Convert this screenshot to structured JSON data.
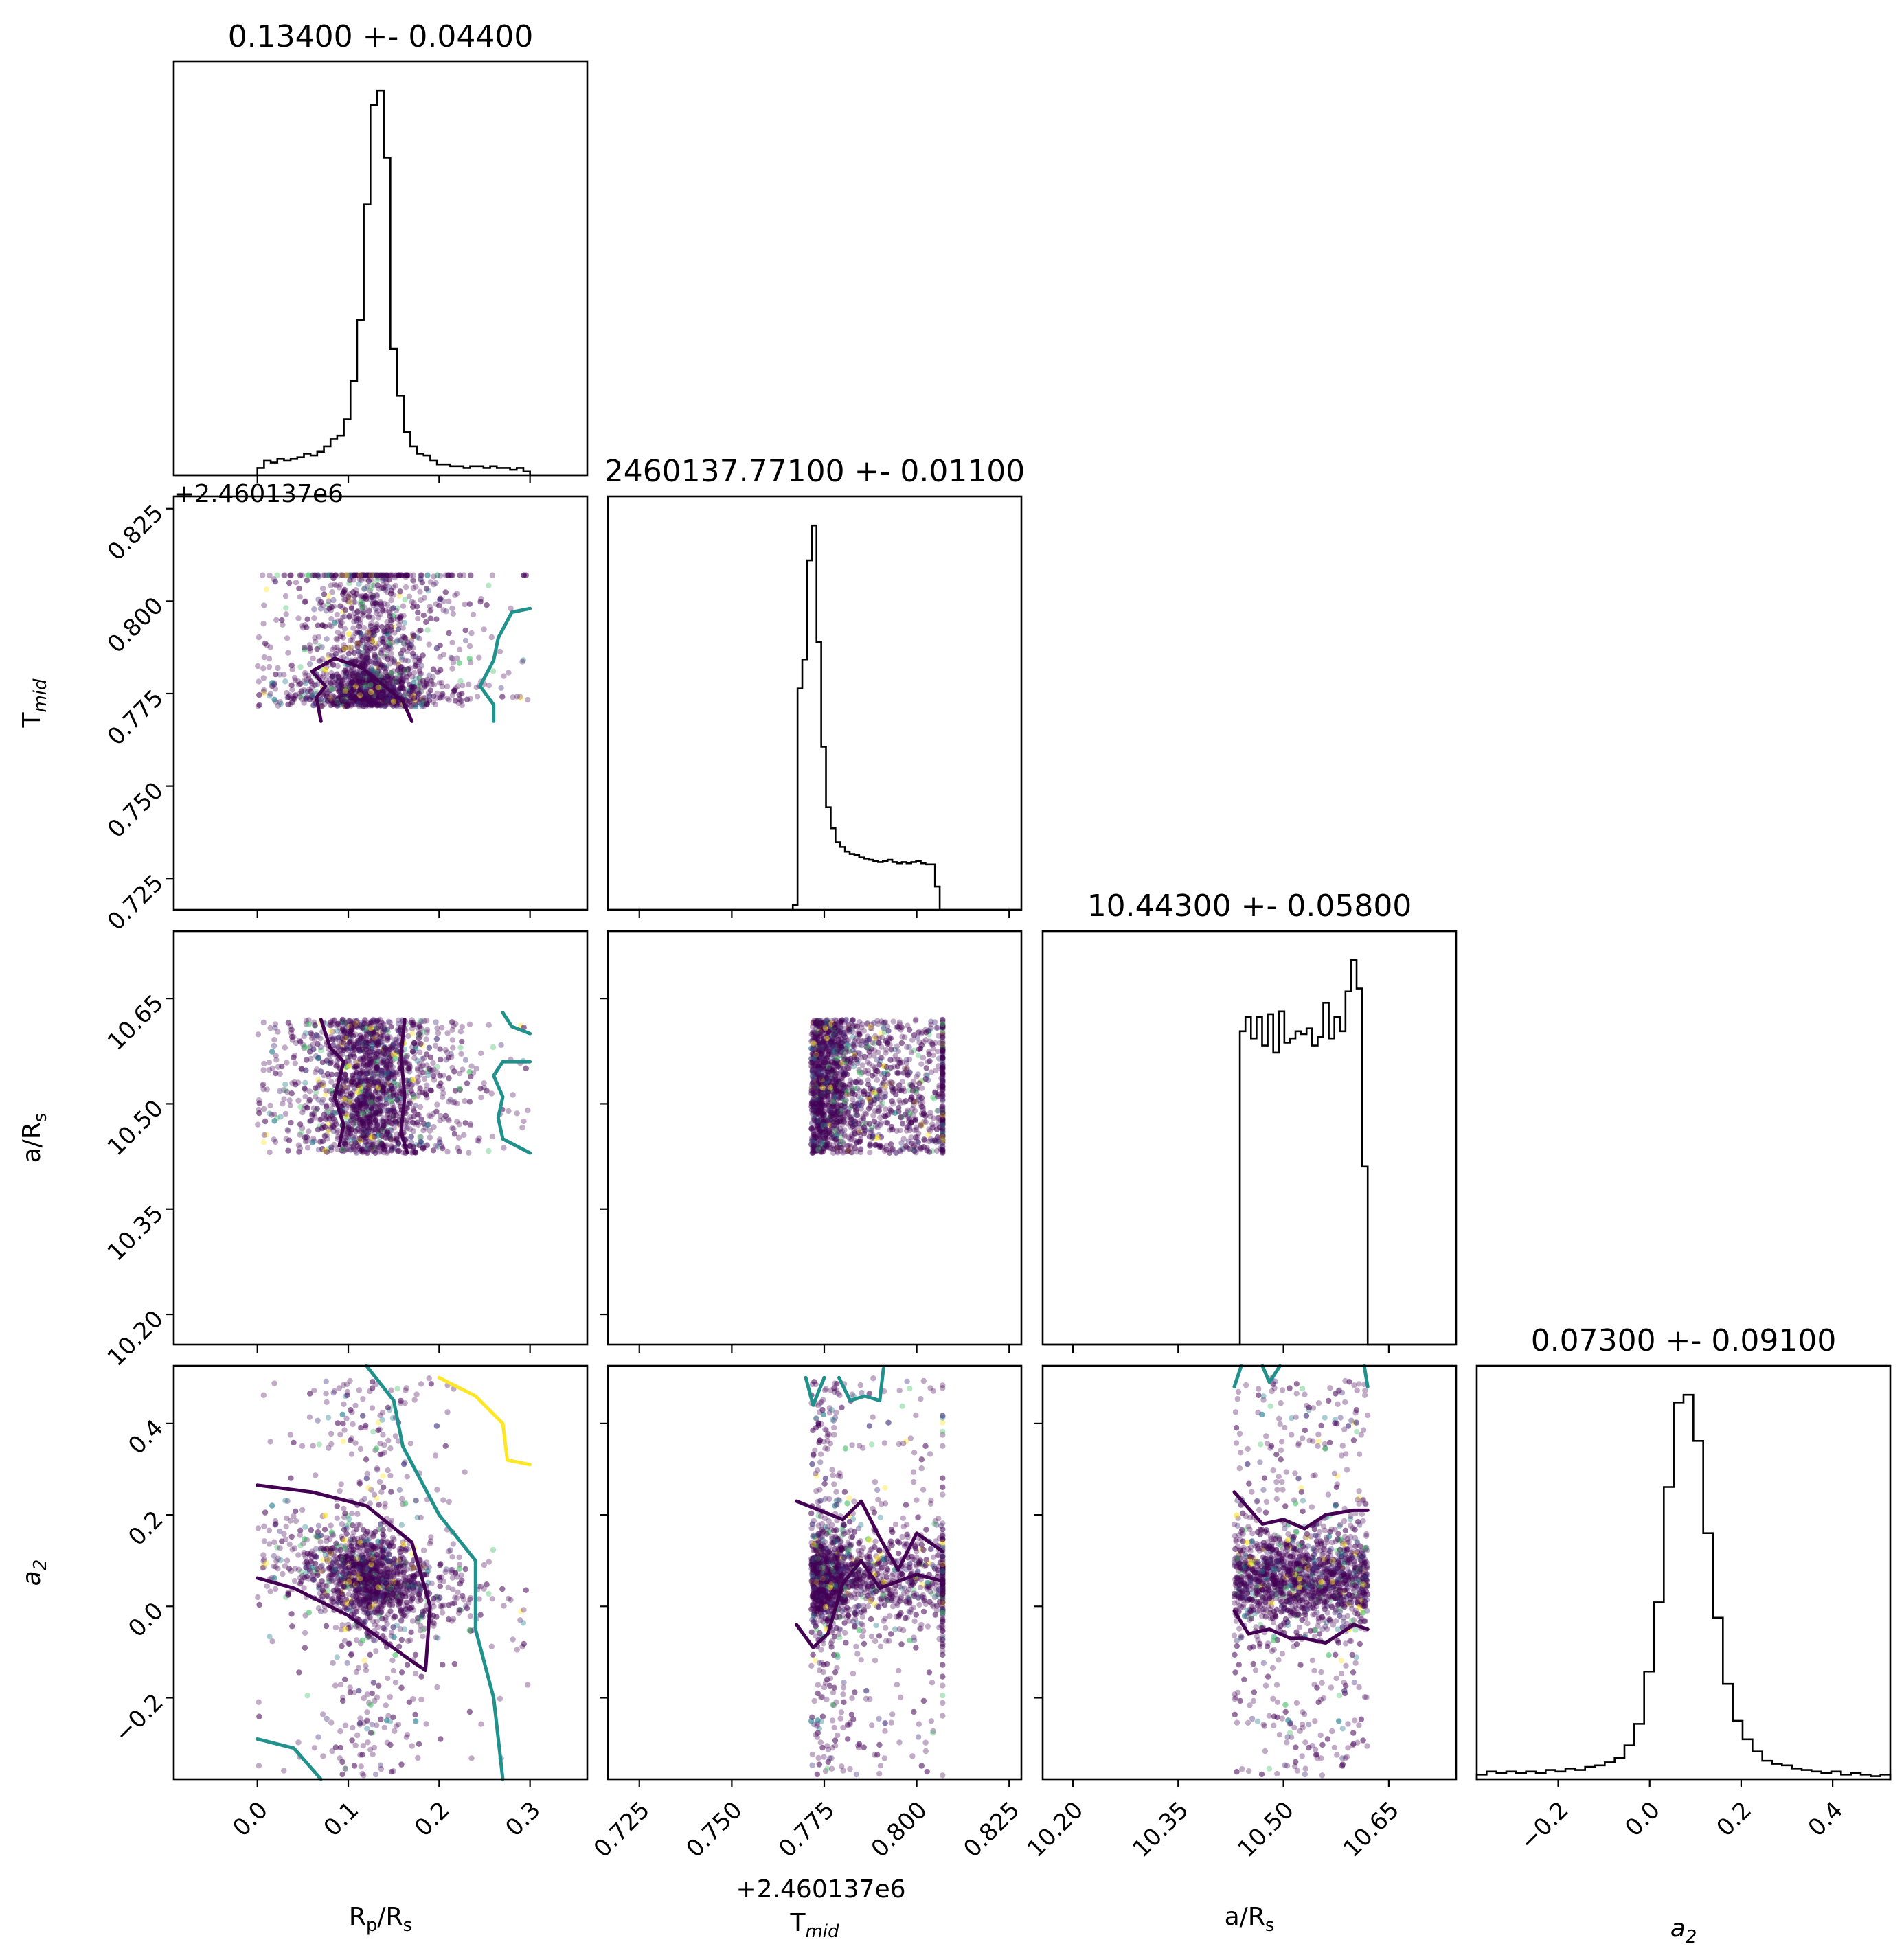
{
  "chart_data": {
    "type": "scatter",
    "kind": "corner",
    "parameters": [
      {
        "key": "rp",
        "axis_label": "R",
        "axis_label_sub": "p",
        "axis_label_rest": "/R",
        "axis_label_sub2": "s",
        "title": "0.13400 +- 0.04400",
        "range": [
          -0.092,
          0.363
        ],
        "ticks": [
          0.0,
          0.1,
          0.2,
          0.3
        ],
        "tick_labels": [
          "0.0",
          "0.1",
          "0.2",
          "0.3"
        ]
      },
      {
        "key": "tmid",
        "axis_label": "T",
        "axis_label_sub": "mid",
        "axis_label_rest": "",
        "axis_label_sub2": "",
        "title": "2460137.77100 +- 0.01100",
        "offset_label": "+2.460137e6",
        "range": [
          0.7165,
          0.8283
        ],
        "ticks": [
          0.725,
          0.75,
          0.775,
          0.8,
          0.825
        ],
        "tick_labels": [
          "0.725",
          "0.750",
          "0.775",
          "0.800",
          "0.825"
        ]
      },
      {
        "key": "ars",
        "axis_label": "a/R",
        "axis_label_sub": "s",
        "axis_label_rest": "",
        "axis_label_sub2": "",
        "title": "10.44300 +- 0.05800",
        "range": [
          10.157,
          10.746
        ],
        "ticks": [
          10.2,
          10.35,
          10.5,
          10.65
        ],
        "tick_labels": [
          "10.20",
          "10.35",
          "10.50",
          "10.65"
        ]
      },
      {
        "key": "a2",
        "axis_label": "a",
        "axis_label_sub": "2",
        "axis_label_rest": "",
        "axis_label_sub2": "",
        "title": "0.07300 +- 0.09100",
        "range": [
          -0.378,
          0.526
        ],
        "ticks": [
          -0.2,
          0.0,
          0.2,
          0.4
        ],
        "tick_labels": [
          "−0.2",
          "0.0",
          "0.2",
          "0.4"
        ]
      }
    ],
    "histograms": [
      {
        "param": "rp",
        "bin_edges_range": [
          0.0,
          0.3
        ],
        "counts": [
          4,
          8,
          7,
          9,
          8,
          9,
          10,
          12,
          11,
          13,
          16,
          20,
          22,
          31,
          52,
          86,
          150,
          205,
          213,
          176,
          70,
          44,
          24,
          16,
          12,
          11,
          8,
          6,
          6,
          5,
          5,
          4,
          5,
          5,
          4,
          5,
          4,
          4,
          3,
          4,
          2
        ]
      },
      {
        "param": "tmid",
        "bin_edges_range": [
          0.7665,
          0.8075
        ],
        "counts": [
          4,
          190,
          215,
          300,
          330,
          230,
          140,
          88,
          70,
          58,
          54,
          50,
          48,
          47,
          45,
          44,
          43,
          42,
          41,
          42,
          43,
          41,
          40,
          41,
          40,
          41,
          42,
          40,
          39,
          39,
          20,
          0
        ]
      },
      {
        "param": "ars",
        "bin_edges_range": [
          10.43,
          10.62
        ],
        "counts": [
          0,
          220,
          230,
          215,
          230,
          210,
          232,
          205,
          234,
          212,
          215,
          220,
          218,
          222,
          210,
          216,
          240,
          215,
          230,
          220,
          248,
          270,
          250,
          125
        ]
      },
      {
        "param": "a2",
        "bin_edges_range": [
          -0.378,
          0.526
        ],
        "counts": [
          3,
          5,
          4,
          5,
          4,
          5,
          4,
          6,
          5,
          7,
          6,
          8,
          9,
          11,
          14,
          22,
          36,
          70,
          115,
          190,
          245,
          250,
          220,
          160,
          105,
          62,
          38,
          26,
          18,
          12,
          10,
          9,
          7,
          6,
          5,
          4,
          5,
          3,
          4,
          3,
          2,
          3
        ]
      }
    ],
    "colormap": "viridis",
    "contour_colors": [
      "#440154",
      "#21918c",
      "#fde725"
    ]
  }
}
